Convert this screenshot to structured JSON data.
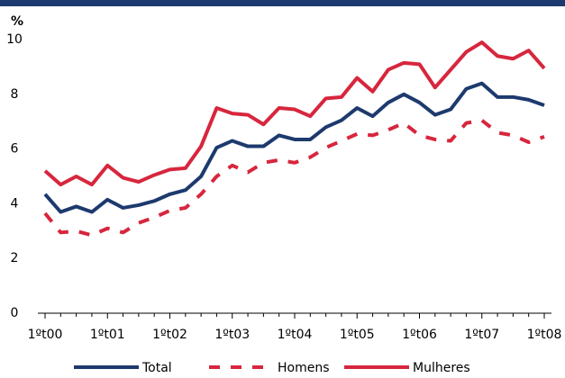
{
  "chart_data": {
    "type": "line",
    "y_unit_label": "%",
    "categories": [
      "1ºt00",
      null,
      null,
      null,
      "1ºt01",
      null,
      null,
      null,
      "1ºt02",
      null,
      null,
      null,
      "1ºt03",
      null,
      null,
      null,
      "1ºt04",
      null,
      null,
      null,
      "1ºt05",
      null,
      null,
      null,
      "1ºt06",
      null,
      null,
      null,
      "1ºt07",
      null,
      null,
      null,
      "1ºt08"
    ],
    "series": [
      {
        "name": "Total",
        "color": "#1d3a6e",
        "style": "solid",
        "values": [
          4.35,
          3.7,
          3.9,
          3.7,
          4.15,
          3.85,
          3.95,
          4.1,
          4.35,
          4.5,
          5.0,
          6.05,
          6.3,
          6.1,
          6.1,
          6.5,
          6.35,
          6.35,
          6.8,
          7.05,
          7.5,
          7.2,
          7.7,
          8.0,
          7.7,
          7.25,
          7.45,
          8.2,
          8.4,
          7.9,
          7.9,
          7.8,
          7.6
        ]
      },
      {
        "name": "Homens",
        "color": "#d7263d",
        "style": "dashed",
        "values": [
          3.65,
          2.95,
          3.0,
          2.85,
          3.1,
          2.95,
          3.3,
          3.5,
          3.75,
          3.85,
          4.35,
          5.0,
          5.4,
          5.15,
          5.5,
          5.6,
          5.5,
          5.7,
          6.05,
          6.3,
          6.55,
          6.5,
          6.7,
          6.95,
          6.5,
          6.35,
          6.3,
          6.95,
          7.05,
          6.6,
          6.5,
          6.25,
          6.45
        ]
      },
      {
        "name": "Mulheres",
        "color": "#d7263d",
        "style": "solid",
        "values": [
          5.2,
          4.7,
          5.0,
          4.7,
          5.4,
          4.95,
          4.8,
          5.05,
          5.25,
          5.3,
          6.1,
          7.5,
          7.3,
          7.25,
          6.9,
          7.5,
          7.45,
          7.2,
          7.85,
          7.9,
          8.6,
          8.1,
          8.9,
          9.15,
          9.1,
          8.25,
          8.9,
          9.55,
          9.9,
          9.4,
          9.3,
          9.6,
          8.95
        ]
      }
    ],
    "ylim": [
      0,
      10
    ],
    "yticks": [
      0,
      2,
      4,
      6,
      8,
      10
    ],
    "grid": false,
    "legend": "bottom"
  }
}
